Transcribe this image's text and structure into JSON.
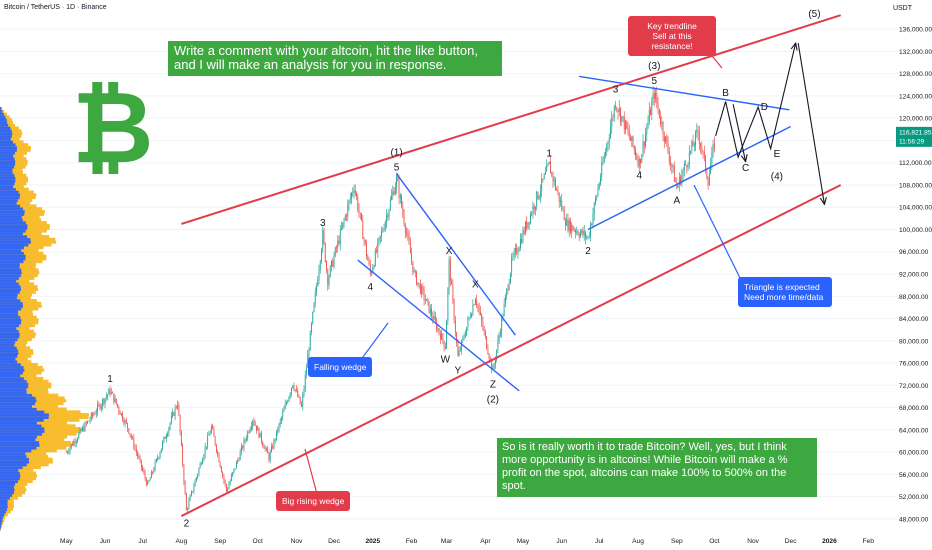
{
  "header": {
    "symbol": "Bitcoin / TetherUS · 1D · Binance",
    "currency": "USDT"
  },
  "colors": {
    "up": "#26a69a",
    "down": "#ef5350",
    "trend_red": "#e23b4a",
    "wedge_blue": "#2962ff",
    "green_box": "#3ea840",
    "profile_blue": "#2962ff",
    "profile_orange": "#f7b924",
    "last_price_bg": "#089981"
  },
  "logo": {
    "glyph": "₿",
    "icon": "bitcoin-icon"
  },
  "annotations": {
    "promo": "Write a comment with your altcoin, hit the like button, and I will make an analysis for you in response.",
    "key_trendline": "Key trendline\nSell at this resistance!",
    "triangle": "Triangle is expected\nNeed more time/data",
    "falling_wedge": "Falling wedge",
    "rising_wedge": "Big rising wedge",
    "summary": "So is it really worth it to trade Bitcoin? Well, yes, but I think more opportunity is in altcoins! While Bitcoin will make a % profit on the spot, altcoins can make 100% to 500% on the spot."
  },
  "chart_data": {
    "type": "candlestick",
    "title": "Bitcoin / TetherUS · 1D · Binance",
    "y_axis": {
      "unit": "USDT",
      "range": [
        46000,
        138000
      ],
      "tick_labels": [
        "136,000.00",
        "132,000.00",
        "128,000.00",
        "124,000.00",
        "120,000.00",
        "116,000.00",
        "112,000.00",
        "108,000.00",
        "104,000.00",
        "100,000.00",
        "96,000.00",
        "92,000.00",
        "88,000.00",
        "84,000.00",
        "80,000.00",
        "76,000.00",
        "72,000.00",
        "68,000.00",
        "64,000.00",
        "60,000.00",
        "56,000.00",
        "52,000.00",
        "48,000.00"
      ],
      "tick_values": [
        136000,
        132000,
        128000,
        124000,
        120000,
        116000,
        112000,
        108000,
        104000,
        100000,
        96000,
        92000,
        88000,
        84000,
        80000,
        76000,
        72000,
        68000,
        64000,
        60000,
        56000,
        52000,
        48000
      ]
    },
    "x_axis": {
      "tick_labels": [
        "May",
        "Jun",
        "Jul",
        "Aug",
        "Sep",
        "Oct",
        "Nov",
        "Dec",
        "2025",
        "Feb",
        "Mar",
        "Apr",
        "May",
        "Jun",
        "Jul",
        "Aug",
        "Sep",
        "Oct",
        "Nov",
        "Dec",
        "2026",
        "Feb"
      ]
    },
    "last_price": {
      "value": "116,821.85",
      "countdown": "11:56:29"
    },
    "price_path_approx": [
      [
        "2024-05-01",
        60000
      ],
      [
        "2024-06-05",
        71000
      ],
      [
        "2024-06-20",
        64000
      ],
      [
        "2024-07-05",
        54000
      ],
      [
        "2024-07-29",
        69000
      ],
      [
        "2024-08-05",
        49500
      ],
      [
        "2024-08-25",
        64500
      ],
      [
        "2024-09-06",
        53000
      ],
      [
        "2024-09-27",
        66000
      ],
      [
        "2024-10-10",
        59000
      ],
      [
        "2024-10-29",
        72500
      ],
      [
        "2024-11-05",
        68000
      ],
      [
        "2024-11-22",
        99000
      ],
      [
        "2024-11-26",
        91000
      ],
      [
        "2024-12-17",
        108000
      ],
      [
        "2024-12-30",
        92000
      ],
      [
        "2025-01-20",
        109000
      ],
      [
        "2025-02-03",
        92000
      ],
      [
        "2025-02-28",
        79000
      ],
      [
        "2025-03-03",
        94000
      ],
      [
        "2025-03-10",
        77000
      ],
      [
        "2025-03-24",
        88000
      ],
      [
        "2025-04-07",
        74500
      ],
      [
        "2025-04-22",
        94000
      ],
      [
        "2025-05-22",
        111500
      ],
      [
        "2025-06-05",
        101000
      ],
      [
        "2025-06-22",
        98500
      ],
      [
        "2025-07-14",
        123000
      ],
      [
        "2025-08-02",
        112000
      ],
      [
        "2025-08-14",
        124500
      ],
      [
        "2025-09-01",
        107500
      ],
      [
        "2025-09-18",
        117500
      ],
      [
        "2025-09-26",
        109000
      ],
      [
        "2025-10-02",
        116800
      ]
    ],
    "wave_labels": [
      {
        "text": "1",
        "date": "2024-06-05",
        "price": 71000,
        "pos": "above"
      },
      {
        "text": "2",
        "date": "2024-08-05",
        "price": 49500,
        "pos": "below"
      },
      {
        "text": "3",
        "date": "2024-11-22",
        "price": 99000,
        "pos": "above"
      },
      {
        "text": "4",
        "date": "2024-12-30",
        "price": 92000,
        "pos": "below"
      },
      {
        "text": "(1)",
        "date": "2025-01-20",
        "price": 109000,
        "pos": "above2"
      },
      {
        "text": "5",
        "date": "2025-01-20",
        "price": 109000,
        "pos": "above"
      },
      {
        "text": "W",
        "date": "2025-02-28",
        "price": 79000,
        "pos": "below"
      },
      {
        "text": "X",
        "date": "2025-03-03",
        "price": 94000,
        "pos": "above"
      },
      {
        "text": "Y",
        "date": "2025-03-10",
        "price": 77000,
        "pos": "below"
      },
      {
        "text": "X",
        "date": "2025-03-24",
        "price": 88000,
        "pos": "above"
      },
      {
        "text": "Z",
        "date": "2025-04-07",
        "price": 74500,
        "pos": "below"
      },
      {
        "text": "(2)",
        "date": "2025-04-07",
        "price": 74500,
        "pos": "below2"
      },
      {
        "text": "1",
        "date": "2025-05-22",
        "price": 111500,
        "pos": "above"
      },
      {
        "text": "2",
        "date": "2025-06-22",
        "price": 98500,
        "pos": "below"
      },
      {
        "text": "3",
        "date": "2025-07-14",
        "price": 123000,
        "pos": "above"
      },
      {
        "text": "4",
        "date": "2025-08-02",
        "price": 112000,
        "pos": "below"
      },
      {
        "text": "(3)",
        "date": "2025-08-14",
        "price": 124500,
        "pos": "above2"
      },
      {
        "text": "5",
        "date": "2025-08-14",
        "price": 124500,
        "pos": "above"
      },
      {
        "text": "A",
        "date": "2025-09-01",
        "price": 107500,
        "pos": "below"
      },
      {
        "text": "B",
        "date": "2025-10-10",
        "price": 124000,
        "pos": "free"
      },
      {
        "text": "C",
        "date": "2025-10-26",
        "price": 110500,
        "pos": "free"
      },
      {
        "text": "D",
        "date": "2025-11-10",
        "price": 121500,
        "pos": "free"
      },
      {
        "text": "E",
        "date": "2025-11-20",
        "price": 113000,
        "pos": "free"
      },
      {
        "text": "(4)",
        "date": "2025-11-20",
        "price": 109000,
        "pos": "free"
      },
      {
        "text": "(5)",
        "date": "2025-12-20",
        "price": 138200,
        "pos": "free"
      }
    ],
    "trendlines": [
      {
        "name": "rising-wedge-upper",
        "color": "red",
        "from": [
          "2024-08-01",
          101000
        ],
        "to": [
          "2026-01-10",
          138500
        ]
      },
      {
        "name": "rising-wedge-lower",
        "color": "red",
        "from": [
          "2024-08-01",
          48500
        ],
        "to": [
          "2026-01-10",
          108000
        ]
      },
      {
        "name": "falling-wedge-upper",
        "color": "blue",
        "from": [
          "2025-01-20",
          110000
        ],
        "to": [
          "2025-04-25",
          81000
        ]
      },
      {
        "name": "falling-wedge-lower",
        "color": "blue",
        "from": [
          "2024-12-20",
          94500
        ],
        "to": [
          "2025-04-28",
          71000
        ]
      },
      {
        "name": "triangle-upper",
        "color": "blue",
        "from": [
          "2025-06-15",
          127500
        ],
        "to": [
          "2025-11-30",
          121500
        ]
      },
      {
        "name": "triangle-lower",
        "color": "blue",
        "from": [
          "2025-06-22",
          100000
        ],
        "to": [
          "2025-12-01",
          118500
        ]
      }
    ],
    "projection_path": [
      [
        "2025-10-02",
        116800
      ],
      [
        "2025-10-10",
        123000
      ],
      [
        "2025-10-20",
        113000
      ],
      [
        "2025-11-05",
        122000
      ],
      [
        "2025-11-15",
        114500
      ],
      [
        "2025-12-05",
        133500
      ]
    ],
    "projection_drop": [
      [
        "2025-12-07",
        133500
      ],
      [
        "2025-12-28",
        104500
      ]
    ],
    "arrows": [
      {
        "from": [
          "2025-10-16",
          122500
        ],
        "to": [
          "2025-10-26",
          111800
        ]
      },
      {
        "from": [
          "2025-09-08",
          107000
        ],
        "to": [
          "2025-10-25",
          85000
        ]
      },
      {
        "from": [
          "2024-09-28",
          51500
        ],
        "to": [
          "2024-10-20",
          54000
        ]
      }
    ],
    "volume_profile": {
      "note": "horizontal volume-by-price on the left edge",
      "bins_price": [
        118000,
        114000,
        110000,
        106000,
        102000,
        98000,
        94000,
        90000,
        86000,
        82000,
        78000,
        74000,
        70000,
        66000,
        62000,
        58000,
        54000,
        50000
      ],
      "bins_value": [
        0.22,
        0.35,
        0.28,
        0.38,
        0.52,
        0.62,
        0.48,
        0.4,
        0.45,
        0.42,
        0.33,
        0.5,
        0.65,
        1.0,
        0.85,
        0.55,
        0.35,
        0.15
      ]
    }
  }
}
